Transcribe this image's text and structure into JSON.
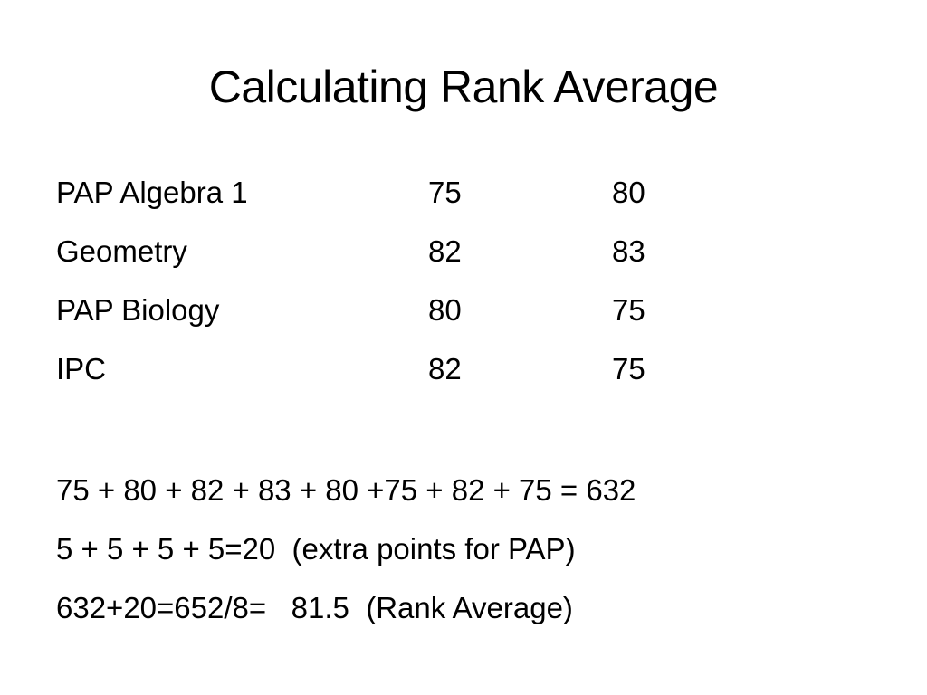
{
  "title": "Calculating Rank Average",
  "grades": [
    {
      "course": "PAP Algebra 1",
      "sem1": "75",
      "sem2": "80"
    },
    {
      "course": "Geometry",
      "sem1": "82",
      "sem2": "83"
    },
    {
      "course": "PAP Biology",
      "sem1": "80",
      "sem2": "75"
    },
    {
      "course": "IPC",
      "sem1": "82",
      "sem2": "75"
    }
  ],
  "calculations": [
    "75 + 80 + 82 + 83 + 80 +75 + 82 + 75 = 632",
    "5 + 5 + 5 + 5=20  (extra points for PAP)",
    "632+20=652/8=   81.5  (Rank Average)"
  ]
}
